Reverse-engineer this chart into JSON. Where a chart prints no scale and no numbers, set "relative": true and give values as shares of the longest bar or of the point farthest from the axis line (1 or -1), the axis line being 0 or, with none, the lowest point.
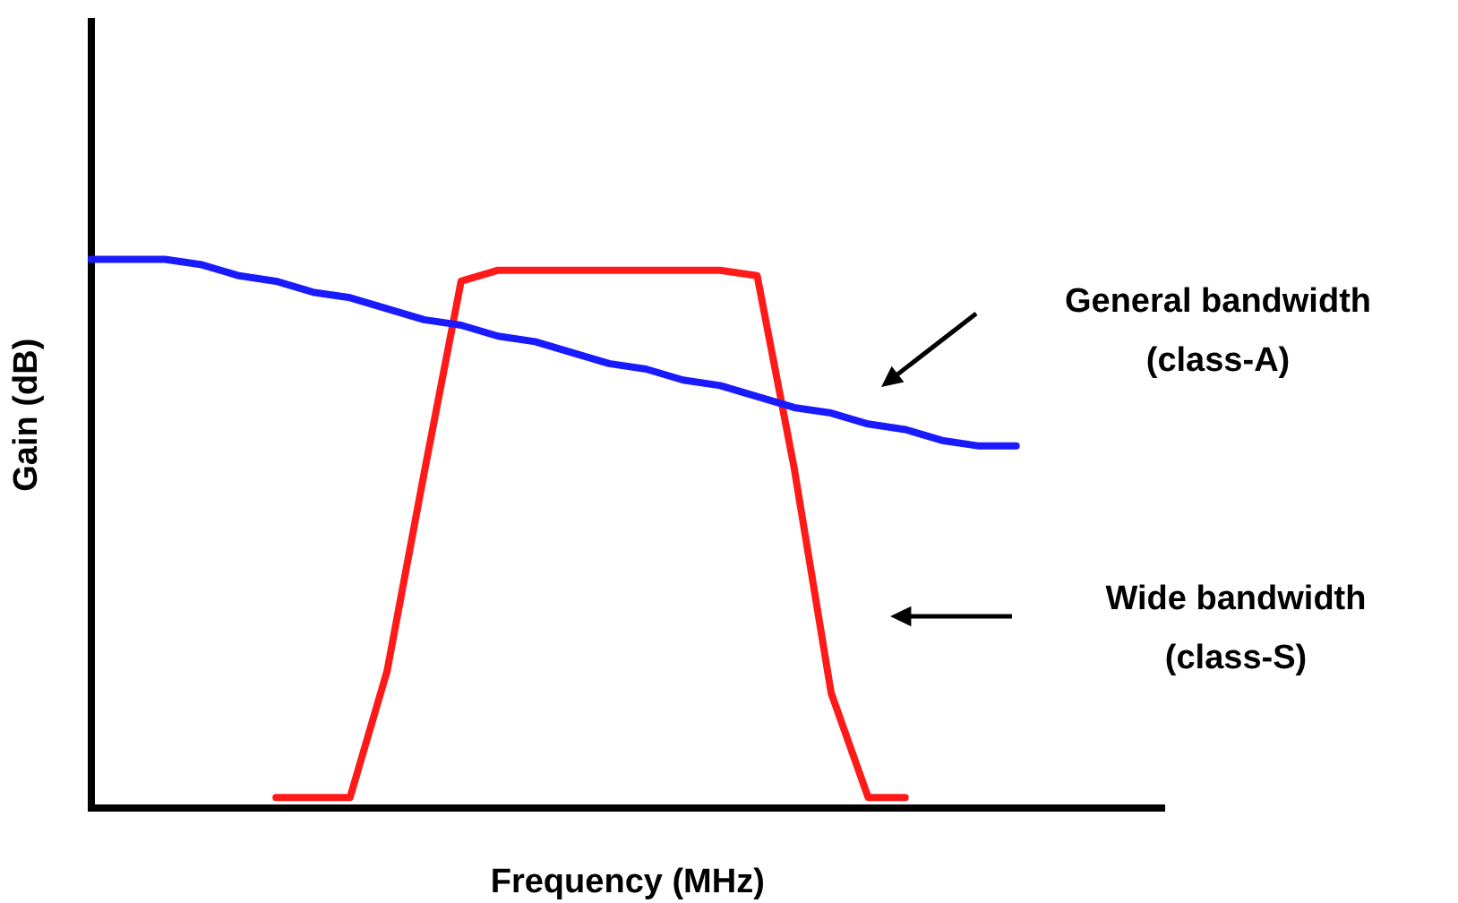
{
  "chart_data": {
    "type": "line",
    "relative": true,
    "xlabel": "Frequency (MHz)",
    "ylabel": "Gain (dB)",
    "grid": false,
    "legend": false,
    "marker": "none",
    "line_style": "solid",
    "categories": [
      null,
      null,
      null,
      null,
      null,
      null,
      null,
      null,
      null,
      null,
      null,
      null,
      null,
      null,
      null,
      null,
      null,
      null,
      null,
      null,
      null,
      null,
      null,
      null,
      null,
      null,
      null,
      null,
      null,
      null
    ],
    "series": [
      {
        "name": "General bandwidth (class-A)",
        "color": "#1a1aff",
        "values": [
          1.0,
          1.0,
          1.0,
          0.99,
          0.97,
          0.96,
          0.94,
          0.93,
          0.91,
          0.89,
          0.88,
          0.86,
          0.85,
          0.83,
          0.81,
          0.8,
          0.78,
          0.77,
          0.75,
          0.73,
          0.72,
          0.7,
          0.69,
          0.67,
          0.66,
          0.66,
          null,
          null,
          null,
          null
        ]
      },
      {
        "name": "Wide bandwidth (class-S)",
        "color": "#ff1a1a",
        "values": [
          null,
          null,
          null,
          null,
          null,
          0.02,
          0.02,
          0.02,
          0.25,
          0.61,
          0.96,
          0.98,
          0.98,
          0.98,
          0.98,
          0.98,
          0.98,
          0.98,
          0.97,
          0.62,
          0.21,
          0.02,
          0.02,
          null,
          null,
          null,
          null,
          null,
          null,
          null
        ]
      }
    ]
  }
}
